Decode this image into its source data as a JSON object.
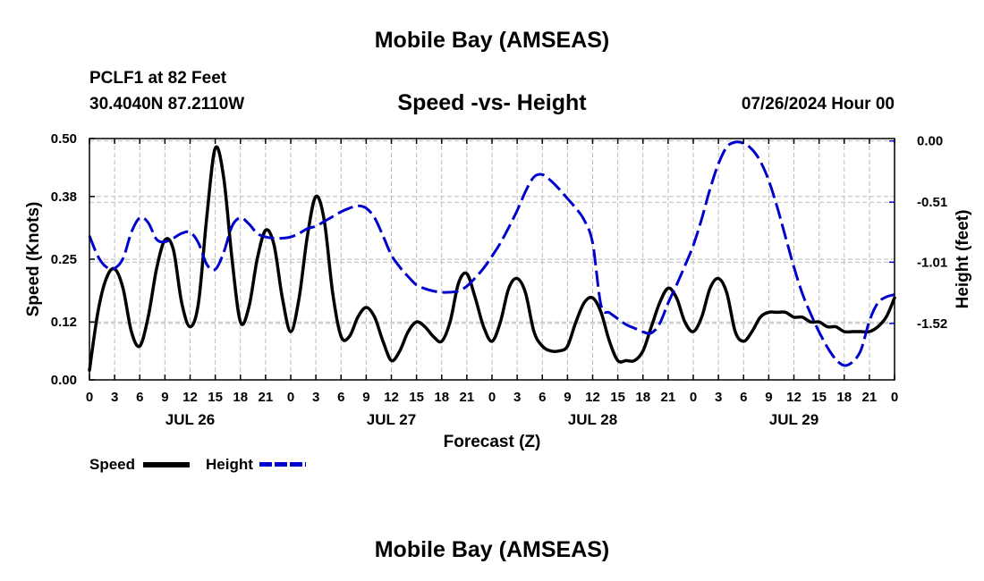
{
  "page": {
    "title": "Mobile Bay (AMSEAS)",
    "station_line1": "PCLF1 at 82 Feet",
    "station_line2": "30.4040N  87.2110W",
    "date_line": "07/26/2024 Hour 00",
    "footer_title": "Mobile Bay (AMSEAS)"
  },
  "legend": {
    "speed_label": "Speed",
    "height_label": "Height"
  },
  "colors": {
    "speed": "#000000",
    "height": "#0000cc",
    "grid": "#bbbbbb"
  },
  "chart_data": {
    "type": "line",
    "title": "Speed -vs- Height",
    "xlabel": "Forecast (Z)",
    "ylabel": "Speed (Knots)",
    "ylabel_right": "Height (feet)",
    "x_unit": "forecast hour",
    "xlim": [
      0,
      96
    ],
    "ylim": [
      0,
      0.5
    ],
    "ylim_right": [
      -1.99,
      0.02
    ],
    "grid": true,
    "legend_position": "bottom-left",
    "x_ticks": [
      0,
      3,
      6,
      9,
      12,
      15,
      18,
      21,
      24,
      27,
      30,
      33,
      36,
      39,
      42,
      45,
      48,
      51,
      54,
      57,
      60,
      63,
      66,
      69,
      72,
      75,
      78,
      81,
      84,
      87,
      90,
      93,
      96
    ],
    "x_tick_labels": [
      "0",
      "3",
      "6",
      "9",
      "12",
      "15",
      "18",
      "21",
      "0",
      "3",
      "6",
      "9",
      "12",
      "15",
      "18",
      "21",
      "0",
      "3",
      "6",
      "9",
      "12",
      "15",
      "18",
      "21",
      "0",
      "3",
      "6",
      "9",
      "12",
      "15",
      "18",
      "21",
      "0"
    ],
    "day_labels": [
      {
        "x": 12,
        "label": "JUL 26"
      },
      {
        "x": 36,
        "label": "JUL 27"
      },
      {
        "x": 60,
        "label": "JUL 28"
      },
      {
        "x": 84,
        "label": "JUL 29"
      }
    ],
    "y_ticks_left": [
      0.0,
      0.12,
      0.25,
      0.38,
      0.5
    ],
    "y_tick_labels_left": [
      "0.00",
      "0.12",
      "0.25",
      "0.38",
      "0.50"
    ],
    "y_ticks_right": [
      0.0,
      -0.51,
      -1.01,
      -1.52
    ],
    "y_tick_labels_right": [
      "0.00",
      "-0.51",
      "-1.01",
      "-1.52"
    ],
    "series": [
      {
        "name": "Speed",
        "axis": "left",
        "style": "solid",
        "points": [
          [
            0,
            0.02
          ],
          [
            1,
            0.14
          ],
          [
            2,
            0.21
          ],
          [
            3,
            0.23
          ],
          [
            4,
            0.19
          ],
          [
            5,
            0.1
          ],
          [
            6,
            0.07
          ],
          [
            7,
            0.13
          ],
          [
            8,
            0.23
          ],
          [
            9,
            0.29
          ],
          [
            10,
            0.27
          ],
          [
            11,
            0.16
          ],
          [
            12,
            0.11
          ],
          [
            13,
            0.16
          ],
          [
            14,
            0.34
          ],
          [
            15,
            0.48
          ],
          [
            16,
            0.42
          ],
          [
            17,
            0.25
          ],
          [
            18,
            0.12
          ],
          [
            19,
            0.15
          ],
          [
            20,
            0.25
          ],
          [
            21,
            0.31
          ],
          [
            22,
            0.28
          ],
          [
            23,
            0.17
          ],
          [
            24,
            0.1
          ],
          [
            25,
            0.17
          ],
          [
            26,
            0.3
          ],
          [
            27,
            0.38
          ],
          [
            28,
            0.33
          ],
          [
            29,
            0.18
          ],
          [
            30,
            0.09
          ],
          [
            31,
            0.09
          ],
          [
            32,
            0.13
          ],
          [
            33,
            0.15
          ],
          [
            34,
            0.13
          ],
          [
            35,
            0.08
          ],
          [
            36,
            0.04
          ],
          [
            37,
            0.06
          ],
          [
            38,
            0.1
          ],
          [
            39,
            0.12
          ],
          [
            40,
            0.11
          ],
          [
            41,
            0.09
          ],
          [
            42,
            0.08
          ],
          [
            43,
            0.12
          ],
          [
            44,
            0.2
          ],
          [
            45,
            0.22
          ],
          [
            46,
            0.17
          ],
          [
            47,
            0.11
          ],
          [
            48,
            0.08
          ],
          [
            49,
            0.12
          ],
          [
            50,
            0.19
          ],
          [
            51,
            0.21
          ],
          [
            52,
            0.18
          ],
          [
            53,
            0.1
          ],
          [
            54,
            0.07
          ],
          [
            55,
            0.06
          ],
          [
            56,
            0.06
          ],
          [
            57,
            0.07
          ],
          [
            58,
            0.12
          ],
          [
            59,
            0.16
          ],
          [
            60,
            0.17
          ],
          [
            61,
            0.14
          ],
          [
            62,
            0.08
          ],
          [
            63,
            0.04
          ],
          [
            64,
            0.04
          ],
          [
            65,
            0.04
          ],
          [
            66,
            0.06
          ],
          [
            67,
            0.11
          ],
          [
            68,
            0.16
          ],
          [
            69,
            0.19
          ],
          [
            70,
            0.17
          ],
          [
            71,
            0.12
          ],
          [
            72,
            0.1
          ],
          [
            73,
            0.13
          ],
          [
            74,
            0.19
          ],
          [
            75,
            0.21
          ],
          [
            76,
            0.18
          ],
          [
            77,
            0.1
          ],
          [
            78,
            0.08
          ],
          [
            79,
            0.1
          ],
          [
            80,
            0.13
          ],
          [
            81,
            0.14
          ],
          [
            82,
            0.14
          ],
          [
            83,
            0.14
          ],
          [
            84,
            0.13
          ],
          [
            85,
            0.13
          ],
          [
            86,
            0.12
          ],
          [
            87,
            0.12
          ],
          [
            88,
            0.11
          ],
          [
            89,
            0.11
          ],
          [
            90,
            0.1
          ],
          [
            91,
            0.1
          ],
          [
            92,
            0.1
          ],
          [
            93,
            0.1
          ],
          [
            94,
            0.11
          ],
          [
            95,
            0.13
          ],
          [
            96,
            0.17
          ]
        ]
      },
      {
        "name": "Height",
        "axis": "right",
        "style": "dashed",
        "points": [
          [
            0,
            -0.79
          ],
          [
            1,
            -0.96
          ],
          [
            2,
            -1.05
          ],
          [
            3,
            -1.06
          ],
          [
            4,
            -0.98
          ],
          [
            5,
            -0.76
          ],
          [
            6,
            -0.64
          ],
          [
            7,
            -0.68
          ],
          [
            8,
            -0.82
          ],
          [
            9,
            -0.84
          ],
          [
            10,
            -0.81
          ],
          [
            11,
            -0.77
          ],
          [
            12,
            -0.76
          ],
          [
            13,
            -0.85
          ],
          [
            14,
            -1.03
          ],
          [
            15,
            -1.07
          ],
          [
            16,
            -0.93
          ],
          [
            17,
            -0.71
          ],
          [
            18,
            -0.64
          ],
          [
            19,
            -0.69
          ],
          [
            20,
            -0.77
          ],
          [
            21,
            -0.8
          ],
          [
            22,
            -0.81
          ],
          [
            23,
            -0.81
          ],
          [
            24,
            -0.8
          ],
          [
            25,
            -0.77
          ],
          [
            26,
            -0.73
          ],
          [
            27,
            -0.71
          ],
          [
            28,
            -0.67
          ],
          [
            29,
            -0.63
          ],
          [
            30,
            -0.59
          ],
          [
            31,
            -0.56
          ],
          [
            32,
            -0.54
          ],
          [
            33,
            -0.56
          ],
          [
            34,
            -0.64
          ],
          [
            35,
            -0.79
          ],
          [
            36,
            -0.95
          ],
          [
            37,
            -1.05
          ],
          [
            38,
            -1.13
          ],
          [
            39,
            -1.2
          ],
          [
            40,
            -1.23
          ],
          [
            41,
            -1.25
          ],
          [
            42,
            -1.26
          ],
          [
            43,
            -1.26
          ],
          [
            44,
            -1.25
          ],
          [
            45,
            -1.21
          ],
          [
            46,
            -1.14
          ],
          [
            47,
            -1.06
          ],
          [
            48,
            -0.96
          ],
          [
            49,
            -0.85
          ],
          [
            50,
            -0.72
          ],
          [
            51,
            -0.58
          ],
          [
            52,
            -0.42
          ],
          [
            53,
            -0.3
          ],
          [
            54,
            -0.28
          ],
          [
            55,
            -0.33
          ],
          [
            56,
            -0.4
          ],
          [
            57,
            -0.48
          ],
          [
            58,
            -0.56
          ],
          [
            59,
            -0.66
          ],
          [
            60,
            -0.85
          ],
          [
            61,
            -1.37
          ],
          [
            62,
            -1.43
          ],
          [
            63,
            -1.48
          ],
          [
            64,
            -1.53
          ],
          [
            65,
            -1.56
          ],
          [
            66,
            -1.59
          ],
          [
            67,
            -1.6
          ],
          [
            68,
            -1.52
          ],
          [
            69,
            -1.35
          ],
          [
            70,
            -1.2
          ],
          [
            71,
            -1.04
          ],
          [
            72,
            -0.87
          ],
          [
            73,
            -0.65
          ],
          [
            74,
            -0.4
          ],
          [
            75,
            -0.19
          ],
          [
            76,
            -0.05
          ],
          [
            77,
            -0.01
          ],
          [
            78,
            -0.02
          ],
          [
            79,
            -0.07
          ],
          [
            80,
            -0.17
          ],
          [
            81,
            -0.33
          ],
          [
            82,
            -0.55
          ],
          [
            83,
            -0.8
          ],
          [
            84,
            -1.05
          ],
          [
            85,
            -1.27
          ],
          [
            86,
            -1.44
          ],
          [
            87,
            -1.59
          ],
          [
            88,
            -1.72
          ],
          [
            89,
            -1.82
          ],
          [
            90,
            -1.87
          ],
          [
            91,
            -1.84
          ],
          [
            92,
            -1.74
          ],
          [
            93,
            -1.5
          ],
          [
            94,
            -1.35
          ],
          [
            95,
            -1.3
          ],
          [
            96,
            -1.28
          ]
        ]
      }
    ]
  }
}
